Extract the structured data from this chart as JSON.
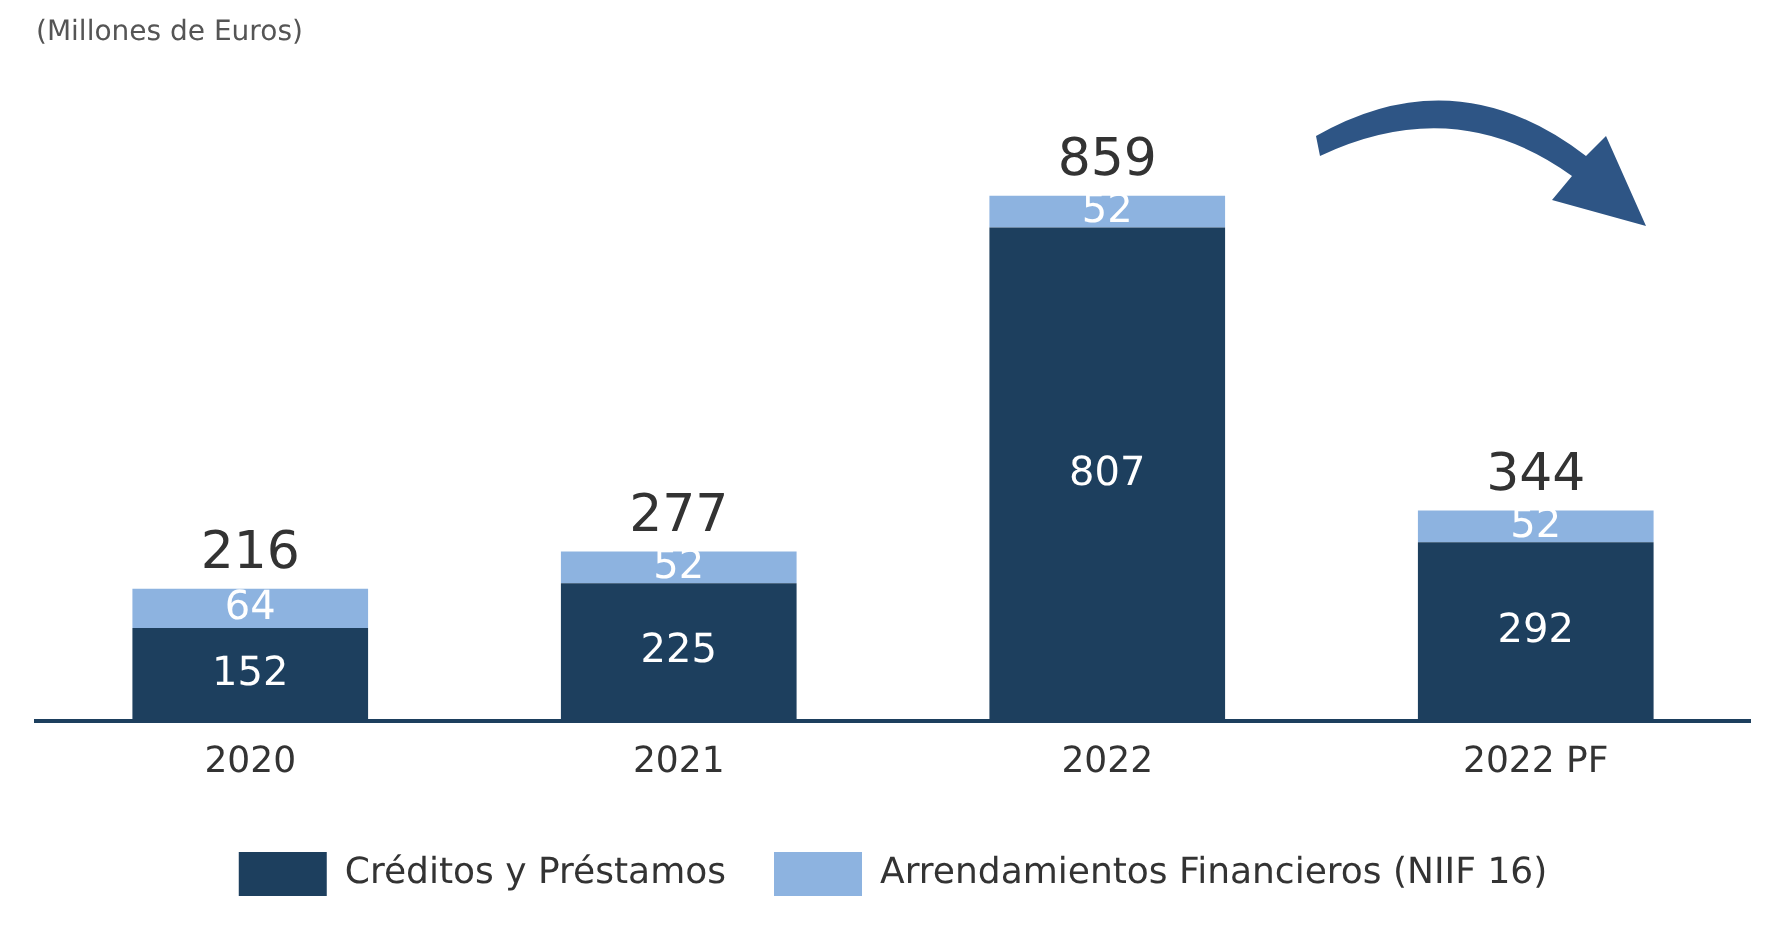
{
  "chart_data": {
    "type": "bar",
    "title": "(Millones de Euros)",
    "categories": [
      "2020",
      "2021",
      "2022",
      "2022 PF"
    ],
    "stacked": true,
    "series": [
      {
        "name": "Créditos y Préstamos",
        "color": "#1d3f5e",
        "values": [
          152,
          225,
          807,
          292
        ]
      },
      {
        "name": "Arrendamientos Financieros (NIIF 16)",
        "color": "#8db3e0",
        "values": [
          64,
          52,
          52,
          52
        ]
      }
    ],
    "data_labels": true,
    "totals": [
      "216",
      "277",
      "859",
      "344"
    ],
    "legend": "bottom",
    "grid": false
  }
}
